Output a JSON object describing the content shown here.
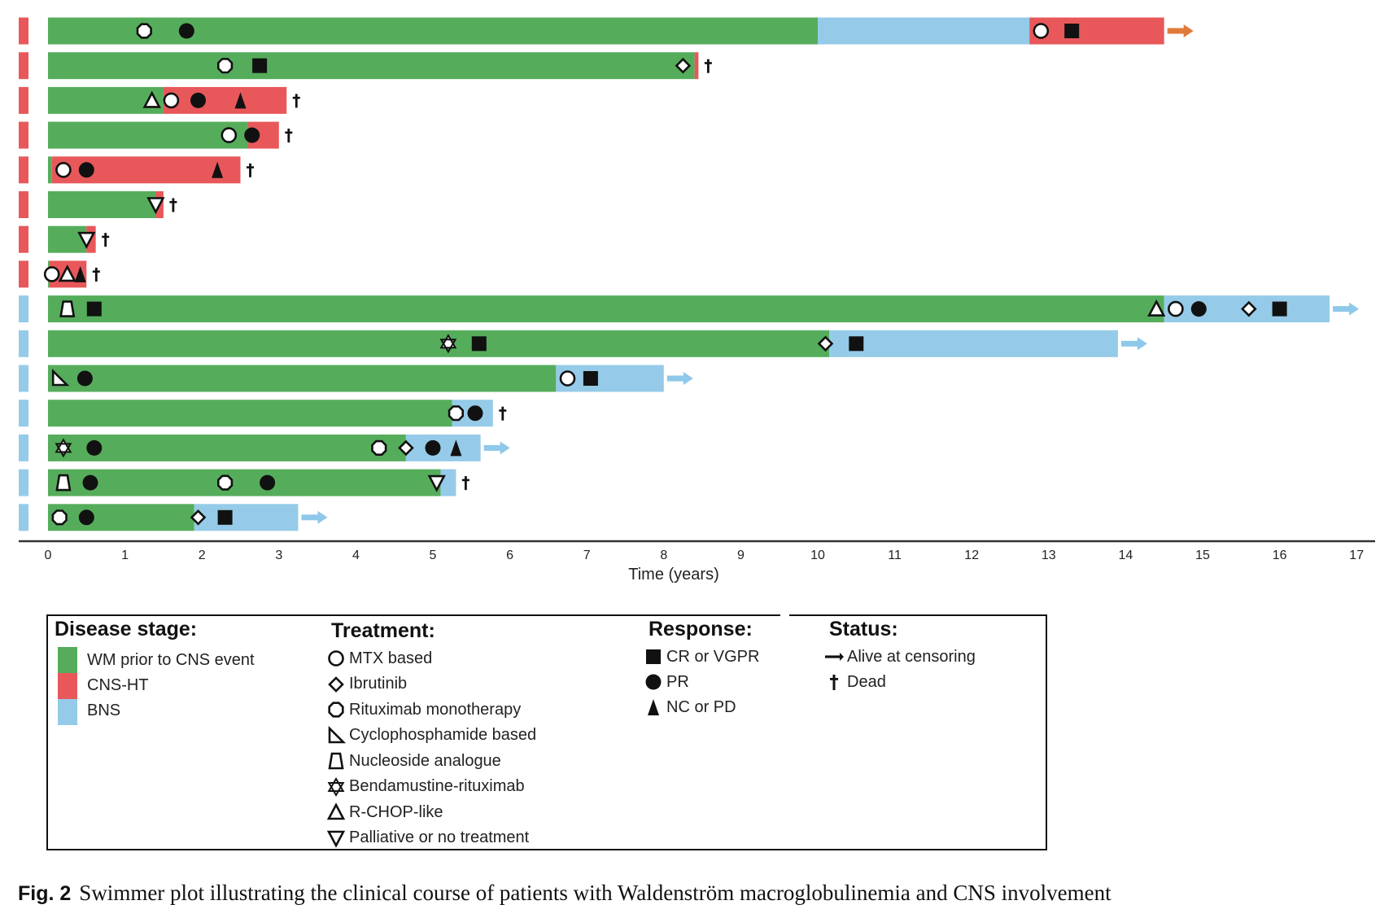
{
  "chart_data": {
    "type": "swimmer",
    "xlabel": "Time (years)",
    "xlim": [
      0,
      17
    ],
    "xticks": [
      0,
      1,
      2,
      3,
      4,
      5,
      6,
      7,
      8,
      9,
      10,
      11,
      12,
      13,
      14,
      15,
      16,
      17
    ],
    "stage_colors": {
      "WM": "#55ad5b",
      "CNS": "#e8585a",
      "BNS": "#95cbe8"
    },
    "arrow_colors": {
      "CNS": "#e07a3a",
      "BNS": "#8ec8ea"
    },
    "patients": [
      {
        "group": "CNS",
        "segments": [
          [
            "WM",
            0,
            10.0
          ],
          [
            "BNS",
            10.0,
            12.75
          ],
          [
            "CNS",
            12.75,
            14.5
          ]
        ],
        "end": "alive",
        "markers": [
          [
            "rituximab",
            1.25
          ],
          [
            "PR",
            1.8
          ],
          [
            "MTX",
            12.9
          ],
          [
            "CR",
            13.3
          ]
        ]
      },
      {
        "group": "CNS",
        "segments": [
          [
            "WM",
            0,
            8.4
          ],
          [
            "CNS",
            8.4,
            8.45
          ]
        ],
        "end": "dead",
        "markers": [
          [
            "rituximab",
            2.3
          ],
          [
            "CR",
            2.75
          ],
          [
            "ibrutinib",
            8.25
          ]
        ]
      },
      {
        "group": "CNS",
        "segments": [
          [
            "WM",
            0,
            1.5
          ],
          [
            "CNS",
            1.5,
            3.1
          ]
        ],
        "end": "dead",
        "markers": [
          [
            "rchop",
            1.35
          ],
          [
            "MTX",
            1.6
          ],
          [
            "PR",
            1.95
          ],
          [
            "NCPD",
            2.5
          ]
        ]
      },
      {
        "group": "CNS",
        "segments": [
          [
            "WM",
            0,
            2.6
          ],
          [
            "CNS",
            2.6,
            3.0
          ]
        ],
        "end": "dead",
        "markers": [
          [
            "MTX",
            2.35
          ],
          [
            "PR",
            2.65
          ]
        ]
      },
      {
        "group": "CNS",
        "segments": [
          [
            "WM",
            0,
            0.05
          ],
          [
            "CNS",
            0.05,
            2.5
          ]
        ],
        "end": "dead",
        "markers": [
          [
            "MTX",
            0.2
          ],
          [
            "PR",
            0.5
          ],
          [
            "NCPD",
            2.2
          ]
        ]
      },
      {
        "group": "CNS",
        "segments": [
          [
            "WM",
            0,
            1.4
          ],
          [
            "CNS",
            1.4,
            1.5
          ]
        ],
        "end": "dead",
        "markers": [
          [
            "palliative",
            1.4
          ]
        ]
      },
      {
        "group": "CNS",
        "segments": [
          [
            "WM",
            0,
            0.5
          ],
          [
            "CNS",
            0.5,
            0.62
          ]
        ],
        "end": "dead",
        "markers": [
          [
            "palliative",
            0.5
          ]
        ]
      },
      {
        "group": "CNS",
        "segments": [
          [
            "WM",
            0,
            0.02
          ],
          [
            "CNS",
            0.02,
            0.5
          ]
        ],
        "end": "dead",
        "markers": [
          [
            "MTX",
            0.05
          ],
          [
            "rchop",
            0.25
          ],
          [
            "NCPD",
            0.42
          ]
        ]
      },
      {
        "group": "BNS",
        "segments": [
          [
            "WM",
            0,
            14.5
          ],
          [
            "BNS",
            14.5,
            16.65
          ]
        ],
        "end": "alive",
        "markers": [
          [
            "nucleoside",
            0.25
          ],
          [
            "CR",
            0.6
          ],
          [
            "rchop",
            14.4
          ],
          [
            "MTX",
            14.65
          ],
          [
            "PR",
            14.95
          ],
          [
            "ibrutinib",
            15.6
          ],
          [
            "CR",
            16.0
          ]
        ]
      },
      {
        "group": "BNS",
        "segments": [
          [
            "WM",
            0,
            10.15
          ],
          [
            "BNS",
            10.15,
            13.9
          ]
        ],
        "end": "alive",
        "markers": [
          [
            "bendamustine",
            5.2
          ],
          [
            "CR",
            5.6
          ],
          [
            "ibrutinib",
            10.1
          ],
          [
            "CR",
            10.5
          ]
        ]
      },
      {
        "group": "BNS",
        "segments": [
          [
            "WM",
            0,
            6.6
          ],
          [
            "BNS",
            6.6,
            8.0
          ]
        ],
        "end": "alive",
        "markers": [
          [
            "cyclophosphamide",
            0.15
          ],
          [
            "PR",
            0.48
          ],
          [
            "MTX",
            6.75
          ],
          [
            "CR",
            7.05
          ]
        ]
      },
      {
        "group": "BNS",
        "segments": [
          [
            "WM",
            0,
            5.25
          ],
          [
            "BNS",
            5.25,
            5.78
          ]
        ],
        "end": "dead",
        "markers": [
          [
            "rituximab",
            5.3
          ],
          [
            "PR",
            5.55
          ]
        ]
      },
      {
        "group": "BNS",
        "segments": [
          [
            "WM",
            0,
            4.65
          ],
          [
            "BNS",
            4.65,
            5.62
          ]
        ],
        "end": "alive",
        "markers": [
          [
            "bendamustine",
            0.2
          ],
          [
            "PR",
            0.6
          ],
          [
            "rituximab",
            4.3
          ],
          [
            "ibrutinib",
            4.65
          ],
          [
            "PR",
            5.0
          ],
          [
            "NCPD",
            5.3
          ]
        ]
      },
      {
        "group": "BNS",
        "segments": [
          [
            "WM",
            0,
            5.1
          ],
          [
            "BNS",
            5.1,
            5.3
          ]
        ],
        "end": "dead",
        "markers": [
          [
            "nucleoside",
            0.2
          ],
          [
            "PR",
            0.55
          ],
          [
            "rituximab",
            2.3
          ],
          [
            "PR",
            2.85
          ],
          [
            "palliative",
            5.05
          ]
        ]
      },
      {
        "group": "BNS",
        "segments": [
          [
            "WM",
            0,
            1.9
          ],
          [
            "BNS",
            1.9,
            3.25
          ]
        ],
        "end": "alive",
        "markers": [
          [
            "rituximab",
            0.15
          ],
          [
            "PR",
            0.5
          ],
          [
            "ibrutinib",
            1.95
          ],
          [
            "CR",
            2.3
          ]
        ]
      }
    ]
  },
  "legend": {
    "disease_stage": {
      "title": "Disease stage:",
      "items": [
        {
          "label": "WM prior to CNS event",
          "color": "#55ad5b"
        },
        {
          "label": "CNS-HT",
          "color": "#e8585a"
        },
        {
          "label": "BNS",
          "color": "#95cbe8"
        }
      ]
    },
    "treatment": {
      "title": "Treatment:",
      "items": [
        {
          "label": "MTX based",
          "icon": "circle-open-icon"
        },
        {
          "label": "Ibrutinib",
          "icon": "diamond-open-icon"
        },
        {
          "label": "Rituximab monotherapy",
          "icon": "hexagon-open-icon"
        },
        {
          "label": "Cyclophosphamide based",
          "icon": "right-triangle-open-icon"
        },
        {
          "label": "Nucleoside analogue",
          "icon": "trapezoid-open-icon"
        },
        {
          "label": "Bendamustine-rituximab",
          "icon": "star-of-david-open-icon"
        },
        {
          "label": "R-CHOP-like",
          "icon": "triangle-up-open-icon"
        },
        {
          "label": "Palliative or no treatment",
          "icon": "triangle-down-open-icon"
        }
      ]
    },
    "response": {
      "title": "Response:",
      "items": [
        {
          "label": "CR or VGPR",
          "icon": "square-filled-icon"
        },
        {
          "label": "PR",
          "icon": "circle-filled-icon"
        },
        {
          "label": "NC or PD",
          "icon": "triangle-filled-icon"
        }
      ]
    },
    "status": {
      "title": "Status:",
      "items": [
        {
          "label": "Alive at censoring",
          "icon": "arrow-right-icon"
        },
        {
          "label": "Dead",
          "icon": "dagger-icon"
        }
      ]
    }
  },
  "caption": {
    "label": "Fig. 2",
    "text": "Swimmer plot illustrating the clinical course of patients with Waldenström macroglobulinemia and CNS involvement"
  }
}
